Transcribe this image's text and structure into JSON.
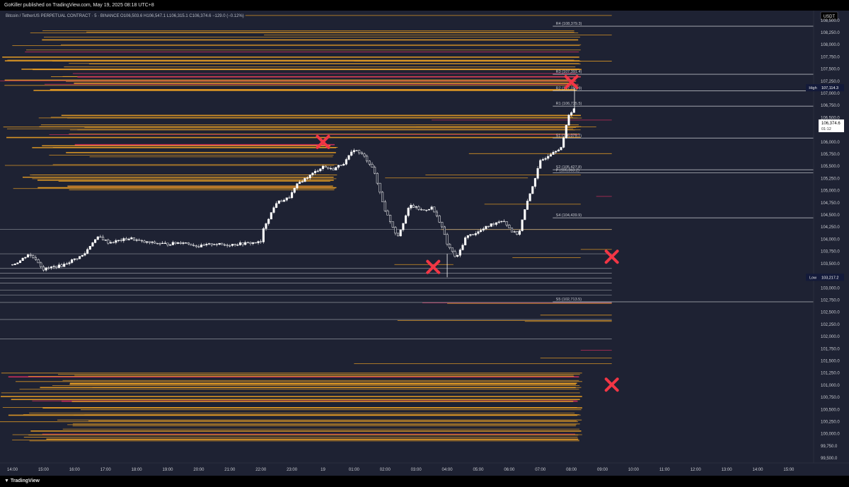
{
  "header": {
    "publish_line": "GoKiller published on TradingView.com, May 19, 2025 08:18 UTC+8",
    "symbol_line": "Bitcoin / TetherUS PERPETUAL CONTRACT · 5 · BINANCE",
    "ohlc_line": "O106,503.6 H106,547.1 L106,315.1 C106,374.6 −129.0 (−0.12%)",
    "currency": "USDT"
  },
  "footer": {
    "brand": "TradingView"
  },
  "colors": {
    "background": "#1e2233",
    "candle": "#ffffff",
    "gray_line": "#b3b6bd",
    "orange_line": "#f5a623",
    "red_line": "#e03060",
    "cross": "#f23645",
    "badge": "#2962ff"
  },
  "chart_data": {
    "type": "candlestick",
    "instrument": "Bitcoin / TetherUS PERPETUAL CONTRACT",
    "interval": "5",
    "exchange": "BINANCE",
    "y_ticks": [
      108500,
      108250,
      108000,
      107750,
      107500,
      107250,
      107000,
      106750,
      106500,
      106250,
      106000,
      105750,
      105500,
      105250,
      105000,
      104750,
      104500,
      104250,
      104000,
      103750,
      103500,
      103250,
      103000,
      102750,
      102500,
      102250,
      102000,
      101750,
      101500,
      101250,
      101000,
      100750,
      100500,
      100250,
      100000,
      99750,
      99500
    ],
    "y_tick_labels": [
      "108,500.0",
      "108,250.0",
      "108,000.0",
      "107,750.0",
      "107,500.0",
      "107,250.0",
      "107,000.0",
      "106,750.0",
      "106,500.0",
      "106,250.0",
      "106,000.0",
      "105,750.0",
      "105,500.0",
      "105,250.0",
      "105,000.0",
      "104,750.0",
      "104,500.0",
      "104,250.0",
      "104,000.0",
      "103,750.0",
      "103,500.0",
      "103,250.0",
      "103,000.0",
      "102,750.0",
      "102,500.0",
      "102,250.0",
      "102,000.0",
      "101,750.0",
      "101,500.0",
      "101,250.0",
      "101,000.0",
      "100,750.0",
      "100,500.0",
      "100,250.0",
      "100,000.0",
      "99,750.0",
      "99,500.0"
    ],
    "x_ticks": [
      0,
      1,
      2,
      3,
      4,
      5,
      6,
      7,
      8,
      9,
      10,
      11,
      12,
      13,
      14,
      15,
      16,
      17,
      18,
      19,
      20,
      21,
      22,
      23,
      24,
      25
    ],
    "x_tick_labels": [
      "14:00",
      "15:00",
      "16:00",
      "17:00",
      "18:00",
      "19:00",
      "20:00",
      "21:00",
      "22:00",
      "23:00",
      "19",
      "01:00",
      "02:00",
      "03:00",
      "04:00",
      "05:00",
      "06:00",
      "07:00",
      "08:00",
      "09:00",
      "10:00",
      "11:00",
      "12:00",
      "13:00",
      "14:00",
      "15:00"
    ],
    "x_unit": "hours since 14:00 (May 18)",
    "pivot_levels": [
      {
        "label": "R4 (108,379.3)",
        "value": 108379.3
      },
      {
        "label": "R3 (107,391.4)",
        "value": 107391.4
      },
      {
        "label": "R2 (107,051.9)",
        "value": 107051.9
      },
      {
        "label": "R1 (106,735.5)",
        "value": 106735.5
      },
      {
        "label": "S1 (106,079.7)",
        "value": 106079.7
      },
      {
        "label": "S2 (105,427.8)",
        "value": 105427.8
      },
      {
        "label": "P (105,363.2)",
        "value": 105363.2
      },
      {
        "label": "S4 (104,439.9)",
        "value": 104439.9
      },
      {
        "label": "S5 (102,713.5)",
        "value": 102713.5
      }
    ],
    "level_lines": [
      104200,
      103700,
      103400,
      103300,
      103200,
      103100,
      102950,
      102850,
      102700,
      102350,
      101950
    ],
    "price_path": [
      [
        0,
        103480
      ],
      [
        0.25,
        103560
      ],
      [
        0.5,
        103690
      ],
      [
        0.75,
        103600
      ],
      [
        1,
        103380
      ],
      [
        1.3,
        103430
      ],
      [
        1.6,
        103460
      ],
      [
        1.9,
        103560
      ],
      [
        2.3,
        103680
      ],
      [
        2.6,
        103960
      ],
      [
        2.8,
        104050
      ],
      [
        3.1,
        103930
      ],
      [
        3.5,
        103980
      ],
      [
        3.8,
        104020
      ],
      [
        4.2,
        103940
      ],
      [
        4.6,
        103920
      ],
      [
        5,
        103900
      ],
      [
        5.5,
        103940
      ],
      [
        6,
        103850
      ],
      [
        6.5,
        103910
      ],
      [
        6.8,
        103880
      ],
      [
        7.2,
        103900
      ],
      [
        7.6,
        103920
      ],
      [
        8,
        103940
      ],
      [
        8.1,
        104250
      ],
      [
        8.5,
        104750
      ],
      [
        8.9,
        104850
      ],
      [
        9.2,
        105150
      ],
      [
        9.6,
        105320
      ],
      [
        10,
        105500
      ],
      [
        10.3,
        105430
      ],
      [
        10.7,
        105580
      ],
      [
        11,
        105850
      ],
      [
        11.3,
        105720
      ],
      [
        11.6,
        105480
      ],
      [
        12,
        104600
      ],
      [
        12.4,
        104050
      ],
      [
        12.8,
        104700
      ],
      [
        13.2,
        104590
      ],
      [
        13.5,
        104650
      ],
      [
        13.8,
        104320
      ],
      [
        14,
        103900
      ],
      [
        14.3,
        103600
      ],
      [
        14.6,
        104050
      ],
      [
        15,
        104150
      ],
      [
        15.4,
        104300
      ],
      [
        15.8,
        104400
      ],
      [
        16.1,
        104150
      ],
      [
        16.3,
        104100
      ],
      [
        16.5,
        104600
      ],
      [
        16.8,
        105200
      ],
      [
        17,
        105600
      ],
      [
        17.4,
        105800
      ],
      [
        17.7,
        105900
      ],
      [
        17.9,
        106550
      ],
      [
        18.1,
        106700
      ],
      [
        18.15,
        106375
      ]
    ],
    "last_price": {
      "value": 106374.6,
      "label": "106,374.6",
      "countdown": "01:12"
    },
    "high": {
      "label": "High",
      "value": 107114.3,
      "value_label": "107,114.3"
    },
    "low": {
      "label": "Low",
      "value": 103217.2,
      "value_label": "103,217.2"
    },
    "y_range": [
      99400,
      108700
    ],
    "x_range": [
      -0.4,
      25.8
    ],
    "annotations": [
      {
        "type": "cross",
        "x": 10.0,
        "y": 106000
      },
      {
        "type": "cross",
        "x": 13.55,
        "y": 103430
      },
      {
        "type": "cross",
        "x": 18.0,
        "y": 107230
      },
      {
        "type": "cross",
        "x": 19.3,
        "y": 103640
      },
      {
        "type": "cross",
        "x": 19.3,
        "y": 101010
      }
    ]
  }
}
